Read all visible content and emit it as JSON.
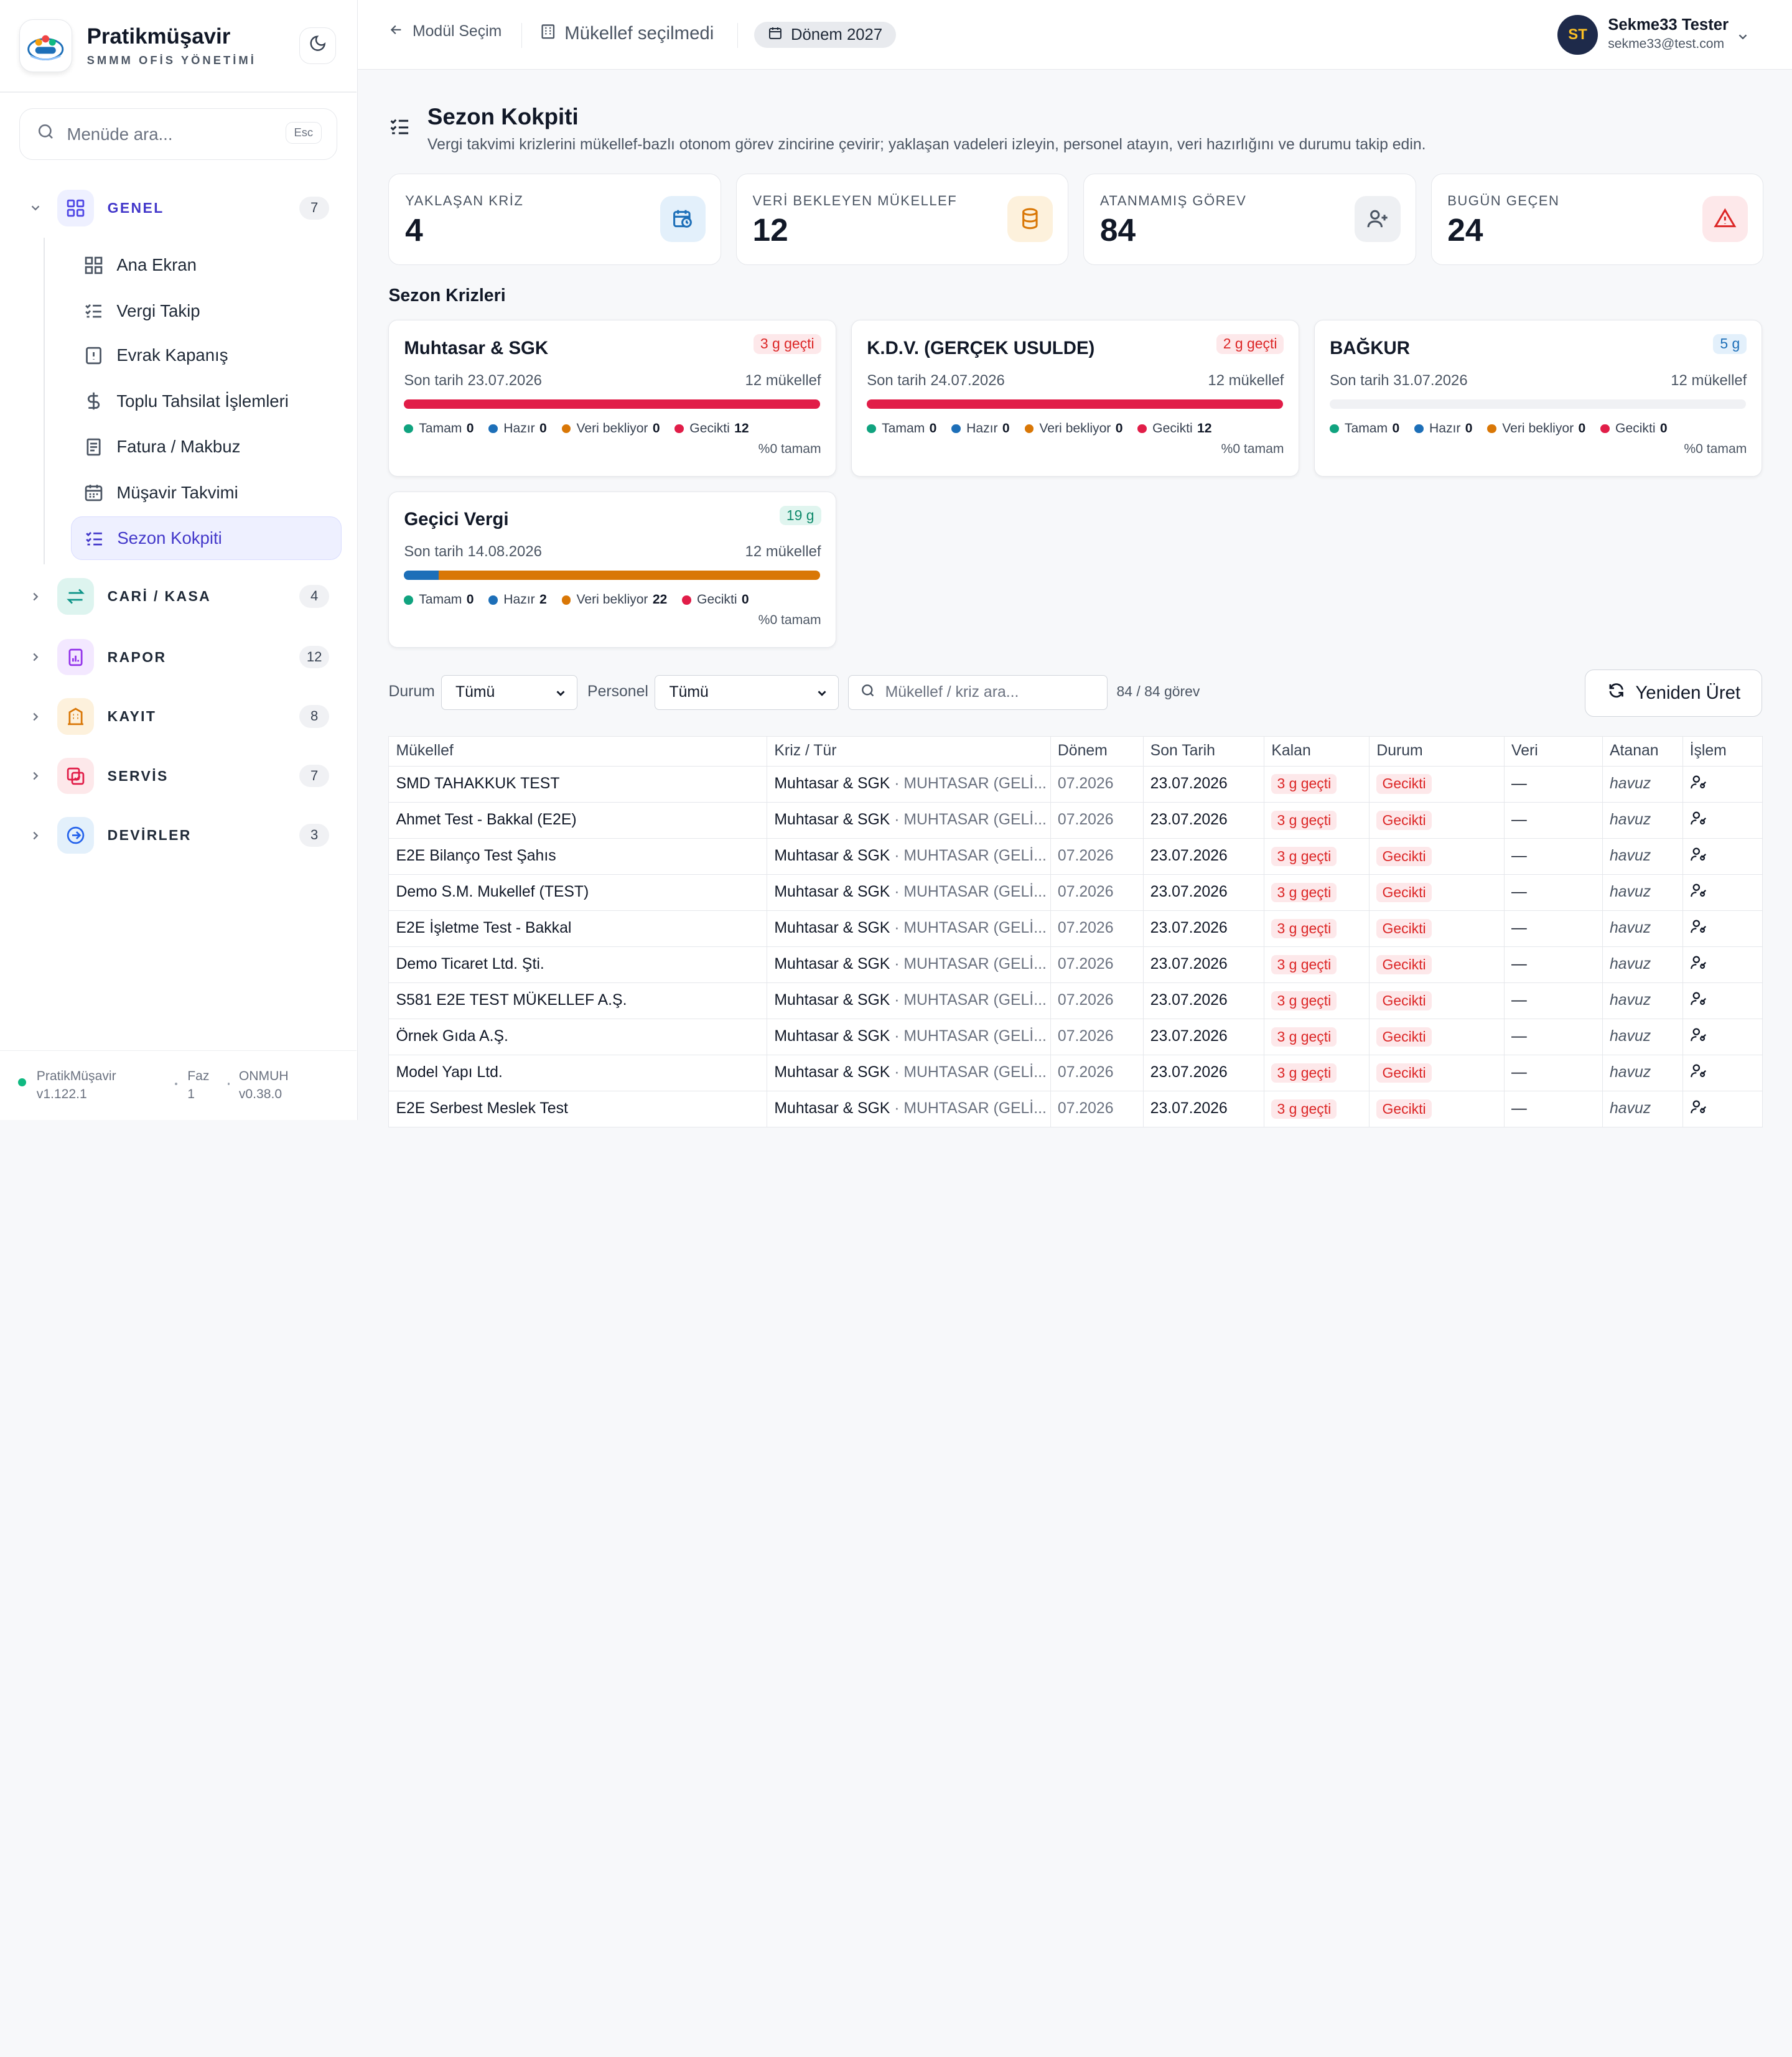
{
  "app": {
    "name": "Pratikmüşavir",
    "subtitle": "SMMM OFİS YÖNETİMİ"
  },
  "sidebar": {
    "search_placeholder": "Menüde ara...",
    "search_shortcut": "Esc",
    "groups": [
      {
        "label": "GENEL",
        "count": "7",
        "icon": "grid-icon",
        "color": "#4f46e5"
      },
      {
        "label": "CARİ / KASA",
        "count": "4",
        "icon": "arrows-icon",
        "color": "#0d9488"
      },
      {
        "label": "RAPOR",
        "count": "12",
        "icon": "report-icon",
        "color": "#9333ea"
      },
      {
        "label": "KAYIT",
        "count": "8",
        "icon": "building-icon",
        "color": "#d97706"
      },
      {
        "label": "SERVİS",
        "count": "7",
        "icon": "service-icon",
        "color": "#e11d48"
      },
      {
        "label": "DEVİRLER",
        "count": "3",
        "icon": "arrow-circle-icon",
        "color": "#2563eb"
      }
    ],
    "items": [
      {
        "label": "Ana Ekran",
        "icon": "dashboard-icon"
      },
      {
        "label": "Vergi Takip",
        "icon": "checklist-icon"
      },
      {
        "label": "Evrak Kapanış",
        "icon": "document-alert-icon"
      },
      {
        "label": "Toplu Tahsilat İşlemleri",
        "icon": "dollar-icon"
      },
      {
        "label": "Fatura / Makbuz",
        "icon": "receipt-icon"
      },
      {
        "label": "Müşavir Takvimi",
        "icon": "calendar-icon"
      },
      {
        "label": "Sezon Kokpiti",
        "icon": "checklist-icon"
      }
    ],
    "footer": {
      "app_name": "PratikMüşavir",
      "app_version": "v1.122.1",
      "phase_label": "Faz",
      "phase_value": "1",
      "module_label": "ONMUH",
      "module_version": "v0.38.0"
    }
  },
  "topbar": {
    "back_label": "Modül Seçim",
    "taxpayer_label": "Mükellef seçilmedi",
    "period_label": "Dönem 2027",
    "user_initials": "ST",
    "user_name": "Sekme33 Tester",
    "user_email": "sekme33@test.com"
  },
  "page": {
    "title": "Sezon Kokpiti",
    "description": "Vergi takvimi krizlerini mükellef-bazlı otonom görev zincirine çevirir; yaklaşan vadeleri izleyin, personel atayın, veri hazırlığını ve durumu takip edin."
  },
  "stats": [
    {
      "label": "YAKLAŞAN KRİZ",
      "value": "4",
      "icon": "calendar-clock-icon",
      "bg": "#e3f0fb",
      "fg": "#1d6fb8"
    },
    {
      "label": "VERİ BEKLEYEN MÜKELLEF",
      "value": "12",
      "icon": "database-icon",
      "bg": "#fdf1dc",
      "fg": "#d97706"
    },
    {
      "label": "ATANMAMIŞ GÖREV",
      "value": "84",
      "icon": "user-plus-icon",
      "bg": "#eef0f3",
      "fg": "#4b5563"
    },
    {
      "label": "BUGÜN GEÇEN",
      "value": "24",
      "icon": "warning-icon",
      "bg": "#fde8ea",
      "fg": "#dc2626"
    }
  ],
  "crises_section": "Sezon Krizleri",
  "crises": [
    {
      "title": "Muhtasar & SGK",
      "badge": "3 g geçti",
      "badge_type": "red",
      "due": "Son tarih 23.07.2026",
      "count": "12 mükellef",
      "progress": {
        "tamam": 0,
        "hazir": 0,
        "veri": 0,
        "gecikti": 12
      },
      "legend": {
        "tamam": "Tamam",
        "hazir": "Hazır",
        "veri": "Veri bekliyor",
        "gecikti": "Gecikti",
        "tamam_v": "0",
        "hazir_v": "0",
        "veri_v": "0",
        "gecikti_v": "12"
      },
      "pct": "%0 tamam"
    },
    {
      "title": "K.D.V. (GERÇEK USULDE)",
      "badge": "2 g geçti",
      "badge_type": "red",
      "due": "Son tarih 24.07.2026",
      "count": "12 mükellef",
      "progress": {
        "tamam": 0,
        "hazir": 0,
        "veri": 0,
        "gecikti": 12
      },
      "legend": {
        "tamam": "Tamam",
        "hazir": "Hazır",
        "veri": "Veri bekliyor",
        "gecikti": "Gecikti",
        "tamam_v": "0",
        "hazir_v": "0",
        "veri_v": "0",
        "gecikti_v": "12"
      },
      "pct": "%0 tamam"
    },
    {
      "title": "BAĞKUR",
      "badge": "5 g",
      "badge_type": "blue",
      "due": "Son tarih 31.07.2026",
      "count": "12 mükellef",
      "progress": {
        "tamam": 0,
        "hazir": 0,
        "veri": 0,
        "gecikti": 0
      },
      "legend": {
        "tamam": "Tamam",
        "hazir": "Hazır",
        "veri": "Veri bekliyor",
        "gecikti": "Gecikti",
        "tamam_v": "0",
        "hazir_v": "0",
        "veri_v": "0",
        "gecikti_v": "0"
      },
      "pct": "%0 tamam"
    },
    {
      "title": "Geçici Vergi",
      "badge": "19 g",
      "badge_type": "green",
      "due": "Son tarih 14.08.2026",
      "count": "12 mükellef",
      "progress": {
        "tamam": 0,
        "hazir": 2,
        "veri": 22,
        "gecikti": 0
      },
      "legend": {
        "tamam": "Tamam",
        "hazir": "Hazır",
        "veri": "Veri bekliyor",
        "gecikti": "Gecikti",
        "tamam_v": "0",
        "hazir_v": "2",
        "veri_v": "22",
        "gecikti_v": "0"
      },
      "pct": "%0 tamam"
    }
  ],
  "colors": {
    "tamam": "#10a37f",
    "hazir": "#1d6fb8",
    "veri": "#d97706",
    "gecikti": "#e11d48"
  },
  "filters": {
    "status_label": "Durum",
    "status_value": "Tümü",
    "staff_label": "Personel",
    "staff_value": "Tümü",
    "search_placeholder": "Mükellef / kriz ara...",
    "count_text": "84 / 84 görev",
    "regenerate_label": "Yeniden Üret"
  },
  "table": {
    "headers": [
      "Mükellef",
      "Kriz / Tür",
      "Dönem",
      "Son Tarih",
      "Kalan",
      "Durum",
      "Veri",
      "Atanan",
      "İşlem"
    ],
    "rows": [
      {
        "name": "SMD TAHAKKUK TEST",
        "crisis": "Muhtasar & SGK",
        "type": "· MUHTASAR (GELİ...",
        "period": "07.2026",
        "due": "23.07.2026",
        "left": "3 g geçti",
        "status": "Gecikti",
        "data": "—",
        "assignee": "havuz"
      },
      {
        "name": "Ahmet Test - Bakkal (E2E)",
        "crisis": "Muhtasar & SGK",
        "type": "· MUHTASAR (GELİ...",
        "period": "07.2026",
        "due": "23.07.2026",
        "left": "3 g geçti",
        "status": "Gecikti",
        "data": "—",
        "assignee": "havuz"
      },
      {
        "name": "E2E Bilanço Test Şahıs",
        "crisis": "Muhtasar & SGK",
        "type": "· MUHTASAR (GELİ...",
        "period": "07.2026",
        "due": "23.07.2026",
        "left": "3 g geçti",
        "status": "Gecikti",
        "data": "—",
        "assignee": "havuz"
      },
      {
        "name": "Demo S.M. Mukellef (TEST)",
        "crisis": "Muhtasar & SGK",
        "type": "· MUHTASAR (GELİ...",
        "period": "07.2026",
        "due": "23.07.2026",
        "left": "3 g geçti",
        "status": "Gecikti",
        "data": "—",
        "assignee": "havuz"
      },
      {
        "name": "E2E İşletme Test - Bakkal",
        "crisis": "Muhtasar & SGK",
        "type": "· MUHTASAR (GELİ...",
        "period": "07.2026",
        "due": "23.07.2026",
        "left": "3 g geçti",
        "status": "Gecikti",
        "data": "—",
        "assignee": "havuz"
      },
      {
        "name": "Demo Ticaret Ltd. Şti.",
        "crisis": "Muhtasar & SGK",
        "type": "· MUHTASAR (GELİ...",
        "period": "07.2026",
        "due": "23.07.2026",
        "left": "3 g geçti",
        "status": "Gecikti",
        "data": "—",
        "assignee": "havuz"
      },
      {
        "name": "S581 E2E TEST MÜKELLEF A.Ş.",
        "crisis": "Muhtasar & SGK",
        "type": "· MUHTASAR (GELİ...",
        "period": "07.2026",
        "due": "23.07.2026",
        "left": "3 g geçti",
        "status": "Gecikti",
        "data": "—",
        "assignee": "havuz"
      },
      {
        "name": "Örnek Gıda A.Ş.",
        "crisis": "Muhtasar & SGK",
        "type": "· MUHTASAR (GELİ...",
        "period": "07.2026",
        "due": "23.07.2026",
        "left": "3 g geçti",
        "status": "Gecikti",
        "data": "—",
        "assignee": "havuz"
      },
      {
        "name": "Model Yapı Ltd.",
        "crisis": "Muhtasar & SGK",
        "type": "· MUHTASAR (GELİ...",
        "period": "07.2026",
        "due": "23.07.2026",
        "left": "3 g geçti",
        "status": "Gecikti",
        "data": "—",
        "assignee": "havuz"
      },
      {
        "name": "E2E Serbest Meslek Test",
        "crisis": "Muhtasar & SGK",
        "type": "· MUHTASAR (GELİ...",
        "period": "07.2026",
        "due": "23.07.2026",
        "left": "3 g geçti",
        "status": "Gecikti",
        "data": "—",
        "assignee": "havuz"
      }
    ]
  }
}
